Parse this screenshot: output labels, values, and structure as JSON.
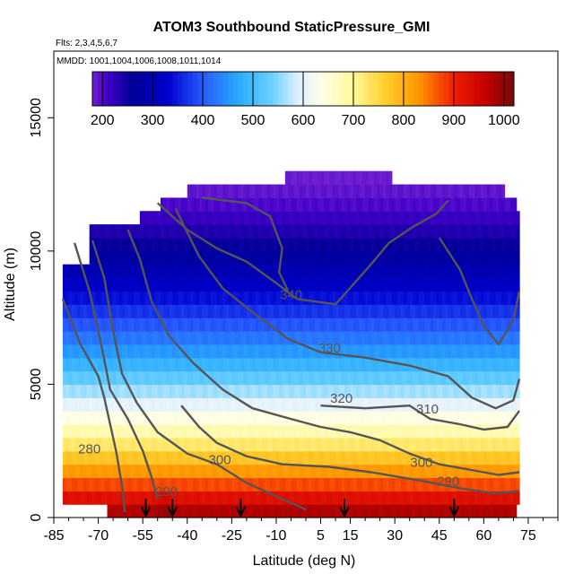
{
  "chart_data": {
    "type": "heatmap",
    "title": "ATOM3 Southbound StaticPressure_GMI",
    "subtitle_flights": "Flts: 2,3,4,5,6,7",
    "subtitle_dates": "MMDD: 1001,1004,1006,1008,1011,1014",
    "xlabel": "Latitude (deg N)",
    "ylabel": "Altitude (m)",
    "xlim": [
      -85,
      85
    ],
    "ylim": [
      0,
      17500
    ],
    "x_ticks": [
      "-85",
      "-70",
      "-55",
      "-40",
      "-25",
      "-10",
      "5",
      "15",
      "30",
      "45",
      "60",
      "75"
    ],
    "x_tick_values": [
      -85,
      -70,
      -55,
      -40,
      -25,
      -10,
      5,
      15,
      30,
      45,
      60,
      75
    ],
    "y_ticks": [
      "0",
      "5000",
      "10000",
      "15000"
    ],
    "y_tick_values": [
      0,
      5000,
      10000,
      15000
    ],
    "colorbar": {
      "range": [
        180,
        1020
      ],
      "ticks": [
        "200",
        "300",
        "400",
        "500",
        "600",
        "700",
        "800",
        "900",
        "1000"
      ],
      "tick_values": [
        200,
        300,
        400,
        500,
        600,
        700,
        800,
        900,
        1000
      ]
    },
    "contour_labels": [
      {
        "text": "340",
        "lat": -5,
        "alt": 8200
      },
      {
        "text": "330",
        "lat": 8,
        "alt": 6200
      },
      {
        "text": "320",
        "lat": 12,
        "alt": 4300
      },
      {
        "text": "310",
        "lat": 41,
        "alt": 3900
      },
      {
        "text": "300",
        "lat": -29,
        "alt": 2000
      },
      {
        "text": "300",
        "lat": 39,
        "alt": 1900
      },
      {
        "text": "290",
        "lat": 48,
        "alt": 1200
      },
      {
        "text": "280",
        "lat": -73,
        "alt": 2400
      },
      {
        "text": "290",
        "lat": -47,
        "alt": 800
      }
    ],
    "sonde_markers_lat": [
      -54,
      -45,
      -22,
      13,
      50
    ],
    "data_lat_range": [
      -82,
      72
    ],
    "data_top_alt": [
      {
        "lat": -82,
        "alt": 9300
      },
      {
        "lat": -74,
        "alt": 10600
      },
      {
        "lat": -64,
        "alt": 11000
      },
      {
        "lat": -57,
        "alt": 11400
      },
      {
        "lat": -50,
        "alt": 12000
      },
      {
        "lat": -41,
        "alt": 12400
      },
      {
        "lat": -24,
        "alt": 12400
      },
      {
        "lat": -8,
        "alt": 12900
      },
      {
        "lat": 20,
        "alt": 12900
      },
      {
        "lat": 28,
        "alt": 12400
      },
      {
        "lat": 58,
        "alt": 12400
      },
      {
        "lat": 66,
        "alt": 11800
      },
      {
        "lat": 70,
        "alt": 11200
      },
      {
        "lat": 72,
        "alt": 10700
      }
    ],
    "pressure_by_altitude": [
      {
        "alt": 0,
        "value": 1000
      },
      {
        "alt": 500,
        "value": 955
      },
      {
        "alt": 1000,
        "value": 900
      },
      {
        "alt": 1500,
        "value": 850
      },
      {
        "alt": 2000,
        "value": 800
      },
      {
        "alt": 2500,
        "value": 750
      },
      {
        "alt": 3000,
        "value": 700
      },
      {
        "alt": 3500,
        "value": 660
      },
      {
        "alt": 4000,
        "value": 620
      },
      {
        "alt": 4500,
        "value": 580
      },
      {
        "alt": 5000,
        "value": 545
      },
      {
        "alt": 5500,
        "value": 505
      },
      {
        "alt": 6000,
        "value": 470
      },
      {
        "alt": 6500,
        "value": 440
      },
      {
        "alt": 7000,
        "value": 410
      },
      {
        "alt": 7500,
        "value": 385
      },
      {
        "alt": 8000,
        "value": 355
      },
      {
        "alt": 8500,
        "value": 330
      },
      {
        "alt": 9000,
        "value": 305
      },
      {
        "alt": 9500,
        "value": 285
      },
      {
        "alt": 10000,
        "value": 265
      },
      {
        "alt": 10500,
        "value": 245
      },
      {
        "alt": 11000,
        "value": 225
      },
      {
        "alt": 11500,
        "value": 210
      },
      {
        "alt": 12000,
        "value": 195
      },
      {
        "alt": 12500,
        "value": 185
      },
      {
        "alt": 13000,
        "value": 180
      }
    ]
  }
}
